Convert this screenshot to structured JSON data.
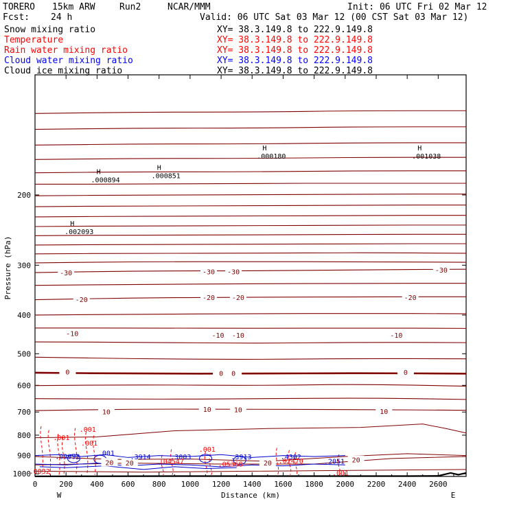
{
  "header": {
    "model": "TORERO",
    "resolution": "15km ARW",
    "run": "Run2",
    "center": "NCAR/MMM",
    "init": "Init: 06 UTC Fri 02 Mar 12",
    "fcst_label": "Fcst:",
    "fcst_value": "24 h",
    "valid": "Valid: 06 UTC Sat 03 Mar 12 (00 CST Sat 03 Mar 12)"
  },
  "legend": [
    {
      "name": "Snow mixing ratio",
      "xy": "XY=  38.3.149.8 to 222.9.149.8",
      "color": "#000000"
    },
    {
      "name": "Temperature",
      "xy": "XY=  38.3.149.8 to 222.9.149.8",
      "color": "#ff0000"
    },
    {
      "name": "Rain water mixing ratio",
      "xy": "XY=  38.3.149.8 to 222.9.149.8",
      "color": "#ff0000"
    },
    {
      "name": "Cloud water mixing ratio",
      "xy": "XY=  38.3.149.8 to 222.9.149.8",
      "color": "#0000ff"
    },
    {
      "name": "Cloud ice mixing ratio",
      "xy": "XY=  38.3.149.8 to 222.9.149.8",
      "color": "#000000"
    }
  ],
  "colors": {
    "temperature": "#800000",
    "rain": "#ff0000",
    "cloud_water": "#0000cc",
    "terrain": "#000000"
  },
  "chart_data": {
    "type": "cross-section",
    "xlabel": "Distance (km)",
    "ylabel": "Pressure (hPa)",
    "xlim": [
      0,
      2780
    ],
    "ylim": [
      1015,
      100
    ],
    "x_ticks": [
      0,
      200,
      400,
      600,
      800,
      1000,
      1200,
      1400,
      1600,
      1800,
      2000,
      2200,
      2400,
      2600
    ],
    "y_ticks": [
      200,
      300,
      400,
      500,
      600,
      700,
      800,
      900,
      1000
    ],
    "y_tick_labels": [
      "200",
      "300",
      "400",
      "500",
      "600",
      "700",
      "800",
      "900",
      "1000"
    ],
    "x_tick_labels": [
      "0",
      "200",
      "400",
      "600",
      "800",
      "1000",
      "1200",
      "1400",
      "1600",
      "1800",
      "2000",
      "2200",
      "2400",
      "2600"
    ],
    "west_label": "W",
    "east_label": "E",
    "temperature_contours": [
      {
        "p": [
          125,
          124,
          124,
          123,
          123
        ],
        "label": ""
      },
      {
        "p": [
          137,
          136,
          136,
          135,
          135
        ],
        "label": ""
      },
      {
        "p": [
          150,
          149,
          149,
          148,
          148
        ],
        "label": ""
      },
      {
        "p": [
          163,
          162,
          162,
          161,
          161
        ],
        "label": ""
      },
      {
        "p": [
          176,
          175,
          175,
          174,
          174
        ],
        "label": ""
      },
      {
        "p": [
          188,
          188,
          187,
          187,
          187
        ],
        "label": ""
      },
      {
        "p": [
          201,
          200,
          200,
          199,
          199
        ],
        "label": ""
      },
      {
        "p": [
          214,
          213,
          213,
          212,
          212
        ],
        "label": ""
      },
      {
        "p": [
          227,
          226,
          226,
          225,
          225
        ],
        "label": ""
      },
      {
        "p": [
          240,
          239,
          239,
          238,
          238
        ],
        "label": ""
      },
      {
        "p": [
          253,
          252,
          252,
          251,
          251
        ],
        "label": ""
      },
      {
        "p": [
          267,
          266,
          266,
          265,
          265
        ],
        "label": ""
      },
      {
        "p": [
          281,
          280,
          280,
          279,
          280
        ],
        "label": ""
      },
      {
        "p": [
          296,
          294,
          294,
          294,
          295
        ],
        "label": ""
      },
      {
        "p": [
          313,
          310,
          310,
          308,
          307
        ],
        "label": "-30"
      },
      {
        "p": [
          337,
          335,
          334,
          333,
          333
        ],
        "label": ""
      },
      {
        "p": [
          366,
          362,
          361,
          360,
          360
        ],
        "label": "-20"
      },
      {
        "p": [
          400,
          398,
          397,
          396,
          397
        ],
        "label": ""
      },
      {
        "p": [
          431,
          431,
          432,
          431,
          432
        ],
        "label": "-10"
      },
      {
        "p": [
          467,
          468,
          471,
          468,
          469
        ],
        "label": ""
      },
      {
        "p": [
          510,
          515,
          517,
          514,
          515
        ],
        "label": ""
      },
      {
        "p": [
          558,
          561,
          561,
          559,
          561
        ],
        "label": "0"
      },
      {
        "p": [
          601,
          598,
          601,
          596,
          603
        ],
        "label": ""
      },
      {
        "p": [
          648,
          650,
          649,
          645,
          651
        ],
        "label": ""
      },
      {
        "p": [
          694,
          688,
          689,
          690,
          693
        ],
        "label": "10"
      }
    ],
    "temperature_labels": [
      {
        "x": 200,
        "p": 313,
        "text": "-30"
      },
      {
        "x": 1120,
        "p": 311,
        "text": "-30"
      },
      {
        "x": 1280,
        "p": 311,
        "text": "-30"
      },
      {
        "x": 2620,
        "p": 308,
        "text": "-30"
      },
      {
        "x": 300,
        "p": 365,
        "text": "-20"
      },
      {
        "x": 1120,
        "p": 361,
        "text": "-20"
      },
      {
        "x": 1310,
        "p": 361,
        "text": "-20"
      },
      {
        "x": 2420,
        "p": 361,
        "text": "-20"
      },
      {
        "x": 240,
        "p": 444,
        "text": "-10"
      },
      {
        "x": 1180,
        "p": 449,
        "text": "-10"
      },
      {
        "x": 1310,
        "p": 449,
        "text": "-10"
      },
      {
        "x": 2330,
        "p": 449,
        "text": "-10"
      },
      {
        "x": 210,
        "p": 555,
        "text": "0"
      },
      {
        "x": 1200,
        "p": 559,
        "text": "0"
      },
      {
        "x": 1280,
        "p": 559,
        "text": "0"
      },
      {
        "x": 2390,
        "p": 556,
        "text": "0"
      },
      {
        "x": 460,
        "p": 698,
        "text": "10"
      },
      {
        "x": 1110,
        "p": 689,
        "text": "10"
      },
      {
        "x": 1310,
        "p": 690,
        "text": "10"
      },
      {
        "x": 2250,
        "p": 697,
        "text": "10"
      },
      {
        "x": 480,
        "p": 935,
        "text": "20"
      },
      {
        "x": 610,
        "p": 937,
        "text": "20"
      },
      {
        "x": 1500,
        "p": 937,
        "text": "20"
      },
      {
        "x": 2070,
        "p": 922,
        "text": "20"
      }
    ],
    "h_markers": [
      {
        "x": 410,
        "p": 180,
        "text": ".000894"
      },
      {
        "x": 800,
        "p": 176,
        "text": ".000851"
      },
      {
        "x": 1480,
        "p": 157,
        "text": ".000180"
      },
      {
        "x": 2480,
        "p": 157,
        "text": ".001038"
      },
      {
        "x": 240,
        "p": 243,
        "text": ".002093"
      }
    ],
    "low_level_labels": [
      {
        "x": 210,
        "p": 918,
        "text": ".09992",
        "color": "#0000cc"
      },
      {
        "x": 460,
        "p": 900,
        "text": ".001",
        "color": "#0000cc"
      },
      {
        "x": 680,
        "p": 920,
        "text": ".3914",
        "color": "#0000cc"
      },
      {
        "x": 940,
        "p": 920,
        "text": ".3003",
        "color": "#0000cc"
      },
      {
        "x": 1330,
        "p": 920,
        "text": ".3913",
        "color": "#0000cc"
      },
      {
        "x": 1650,
        "p": 920,
        "text": ".4302",
        "color": "#0000cc"
      },
      {
        "x": 1930,
        "p": 943,
        "text": ".2051",
        "color": "#0000cc"
      },
      {
        "x": 340,
        "p": 785,
        "text": ".001",
        "color": "#ff0000"
      },
      {
        "x": 170,
        "p": 822,
        "text": ".001",
        "color": "#ff0000"
      },
      {
        "x": 350,
        "p": 850,
        "text": ".001",
        "color": "#ff0000"
      },
      {
        "x": 1110,
        "p": 880,
        "text": ".001",
        "color": "#ff0000"
      },
      {
        "x": 880,
        "p": 943,
        "text": ".04547",
        "color": "#ff0000"
      },
      {
        "x": 1260,
        "p": 958,
        "text": ".05368",
        "color": "#ff0000"
      },
      {
        "x": 1650,
        "p": 942,
        "text": ".02470",
        "color": "#ff0000"
      },
      {
        "x": 1970,
        "p": 1008,
        "text": ".001",
        "color": "#ff0000"
      },
      {
        "x": 30,
        "p": 1000,
        "text": ".0032",
        "color": "#ff0000"
      }
    ]
  }
}
